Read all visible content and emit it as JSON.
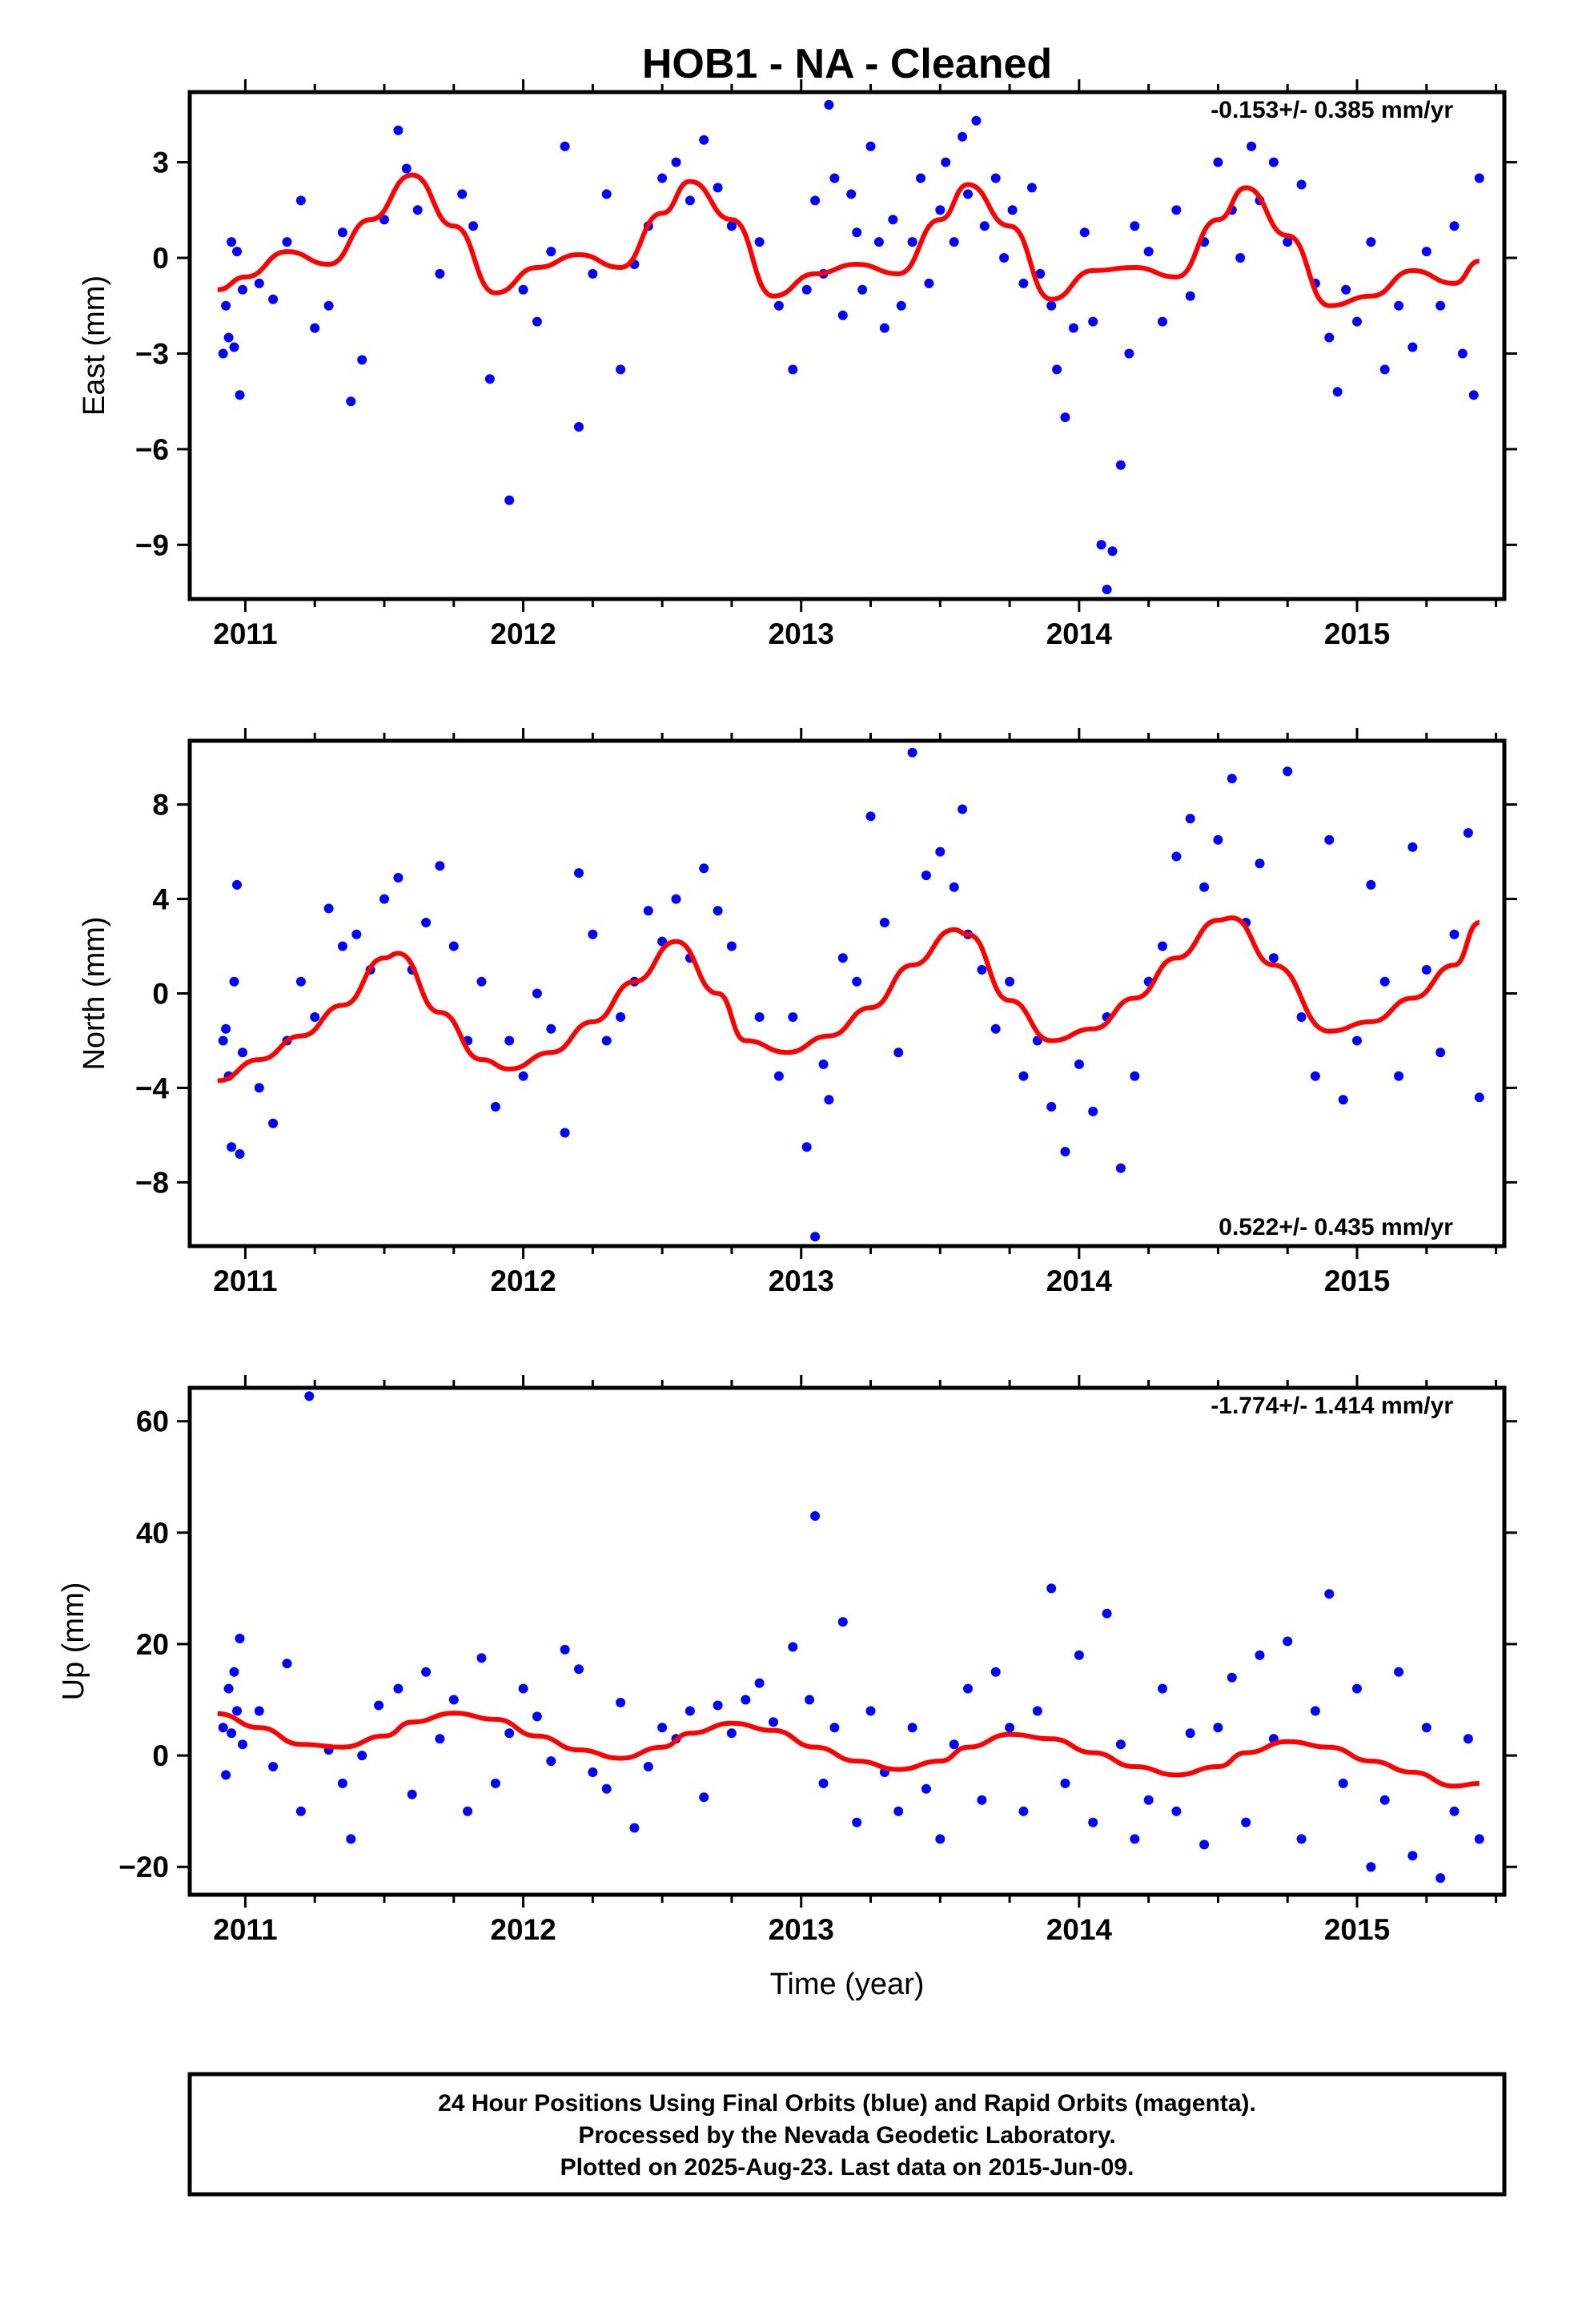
{
  "title": "HOB1  - NA - Cleaned",
  "xlabel": "Time (year)",
  "footer": {
    "line1": "24 Hour Positions Using Final Orbits (blue) and Rapid Orbits (magenta).",
    "line2": "Processed by the Nevada Geodetic Laboratory.",
    "line3": "Plotted on 2025-Aug-23. Last data on 2015-Jun-09."
  },
  "colors": {
    "points": "#0000ff",
    "fit": "#ff0000",
    "axes": "#000000"
  },
  "chart_data": [
    {
      "type": "scatter",
      "panel": "east",
      "ylabel": "East (mm)",
      "rate": "-0.153+/- 0.385 mm/yr",
      "xlim": [
        2010.8,
        2015.53
      ],
      "ylim": [
        -10.7,
        5.2
      ],
      "xticks": [
        "2011",
        "2012",
        "2013",
        "2014",
        "2015"
      ],
      "yticks": [
        "3",
        "0",
        "−3",
        "−6",
        "−9"
      ],
      "ytick_values": [
        3,
        0,
        -3,
        -6,
        -9
      ],
      "fit_line": {
        "x": [
          2010.9,
          2011.0,
          2011.15,
          2011.3,
          2011.45,
          2011.6,
          2011.75,
          2011.9,
          2012.05,
          2012.2,
          2012.35,
          2012.5,
          2012.6,
          2012.75,
          2012.9,
          2013.05,
          2013.2,
          2013.35,
          2013.5,
          2013.6,
          2013.75,
          2013.9,
          2014.05,
          2014.2,
          2014.35,
          2014.5,
          2014.6,
          2014.75,
          2014.9,
          2015.05,
          2015.2,
          2015.35,
          2015.44
        ],
        "y": [
          -1.0,
          -0.6,
          0.2,
          -0.2,
          1.2,
          2.6,
          1.0,
          -1.1,
          -0.3,
          0.1,
          -0.3,
          1.4,
          2.4,
          1.2,
          -1.2,
          -0.5,
          -0.2,
          -0.5,
          1.2,
          2.3,
          1.0,
          -1.3,
          -0.4,
          -0.3,
          -0.6,
          1.2,
          2.2,
          0.7,
          -1.5,
          -1.2,
          -0.4,
          -0.8,
          -0.1
        ]
      },
      "points": {
        "x": [
          2010.92,
          2010.93,
          2010.94,
          2010.95,
          2010.96,
          2010.97,
          2010.98,
          2010.99,
          2011.05,
          2011.1,
          2011.15,
          2011.2,
          2011.25,
          2011.3,
          2011.35,
          2011.38,
          2011.42,
          2011.5,
          2011.55,
          2011.58,
          2011.62,
          2011.7,
          2011.78,
          2011.82,
          2011.88,
          2011.95,
          2012.0,
          2012.05,
          2012.1,
          2012.15,
          2012.2,
          2012.25,
          2012.3,
          2012.35,
          2012.4,
          2012.45,
          2012.5,
          2012.55,
          2012.6,
          2012.65,
          2012.7,
          2012.75,
          2012.85,
          2012.92,
          2012.97,
          2013.02,
          2013.05,
          2013.08,
          2013.1,
          2013.12,
          2013.15,
          2013.18,
          2013.2,
          2013.22,
          2013.25,
          2013.28,
          2013.3,
          2013.33,
          2013.36,
          2013.4,
          2013.43,
          2013.46,
          2013.5,
          2013.52,
          2013.55,
          2013.58,
          2013.6,
          2013.63,
          2013.66,
          2013.7,
          2013.73,
          2013.76,
          2013.8,
          2013.83,
          2013.86,
          2013.9,
          2013.92,
          2013.95,
          2013.98,
          2014.02,
          2014.05,
          2014.08,
          2014.1,
          2014.12,
          2014.15,
          2014.18,
          2014.2,
          2014.25,
          2014.3,
          2014.35,
          2014.4,
          2014.45,
          2014.5,
          2014.55,
          2014.58,
          2014.62,
          2014.65,
          2014.7,
          2014.75,
          2014.8,
          2014.85,
          2014.9,
          2014.93,
          2014.96,
          2015.0,
          2015.05,
          2015.1,
          2015.15,
          2015.2,
          2015.25,
          2015.3,
          2015.35,
          2015.38,
          2015.42,
          2015.44
        ],
        "y": [
          -3.0,
          -1.5,
          -2.5,
          0.5,
          -2.8,
          0.2,
          -4.3,
          -1.0,
          -0.8,
          -1.3,
          0.5,
          1.8,
          -2.2,
          -1.5,
          0.8,
          -4.5,
          -3.2,
          1.2,
          4.0,
          2.8,
          1.5,
          -0.5,
          2.0,
          1.0,
          -3.8,
          -7.6,
          -1.0,
          -2.0,
          0.2,
          3.5,
          -5.3,
          -0.5,
          2.0,
          -3.5,
          -0.2,
          1.0,
          2.5,
          3.0,
          1.8,
          3.7,
          2.2,
          1.0,
          0.5,
          -1.5,
          -3.5,
          -1.0,
          1.8,
          -0.5,
          4.8,
          2.5,
          -1.8,
          2.0,
          0.8,
          -1.0,
          3.5,
          0.5,
          -2.2,
          1.2,
          -1.5,
          0.5,
          2.5,
          -0.8,
          1.5,
          3.0,
          0.5,
          3.8,
          2.0,
          4.3,
          1.0,
          2.5,
          0.0,
          1.5,
          -0.8,
          2.2,
          -0.5,
          -1.5,
          -3.5,
          -5.0,
          -2.2,
          0.8,
          -2.0,
          -9.0,
          -10.4,
          -9.2,
          -6.5,
          -3.0,
          1.0,
          0.2,
          -2.0,
          1.5,
          -1.2,
          0.5,
          3.0,
          1.5,
          0.0,
          3.5,
          1.8,
          3.0,
          0.5,
          2.3,
          -0.8,
          -2.5,
          -4.2,
          -1.0,
          -2.0,
          0.5,
          -3.5,
          -1.5,
          -2.8,
          0.2,
          -1.5,
          1.0,
          -3.0,
          -4.3,
          2.5
        ]
      }
    },
    {
      "type": "scatter",
      "panel": "north",
      "ylabel": "North (mm)",
      "rate": "0.522+/- 0.435 mm/yr",
      "xlim": [
        2010.8,
        2015.53
      ],
      "ylim": [
        -10.7,
        10.7
      ],
      "xticks": [
        "2011",
        "2012",
        "2013",
        "2014",
        "2015"
      ],
      "yticks": [
        "8",
        "4",
        "0",
        "−4",
        "−8"
      ],
      "ytick_values": [
        8,
        4,
        0,
        -4,
        -8
      ],
      "fit_line": {
        "x": [
          2010.9,
          2011.05,
          2011.2,
          2011.35,
          2011.5,
          2011.55,
          2011.7,
          2011.85,
          2011.95,
          2012.1,
          2012.25,
          2012.4,
          2012.55,
          2012.7,
          2012.8,
          2012.95,
          2013.1,
          2013.25,
          2013.4,
          2013.55,
          2013.6,
          2013.75,
          2013.9,
          2014.05,
          2014.2,
          2014.35,
          2014.5,
          2014.55,
          2014.7,
          2014.9,
          2015.05,
          2015.2,
          2015.35,
          2015.44
        ],
        "y": [
          -3.7,
          -2.8,
          -1.8,
          -0.5,
          1.5,
          1.7,
          -0.8,
          -2.8,
          -3.2,
          -2.5,
          -1.2,
          0.5,
          2.2,
          0.0,
          -2.0,
          -2.5,
          -1.8,
          -0.6,
          1.2,
          2.7,
          2.5,
          -0.3,
          -2.0,
          -1.5,
          -0.2,
          1.5,
          3.1,
          3.2,
          1.2,
          -1.6,
          -1.2,
          -0.2,
          1.2,
          3.0
        ]
      },
      "points": {
        "x": [
          2010.92,
          2010.93,
          2010.94,
          2010.95,
          2010.96,
          2010.97,
          2010.98,
          2010.99,
          2011.05,
          2011.1,
          2011.15,
          2011.2,
          2011.25,
          2011.3,
          2011.35,
          2011.4,
          2011.45,
          2011.5,
          2011.55,
          2011.6,
          2011.65,
          2011.7,
          2011.75,
          2011.8,
          2011.85,
          2011.9,
          2011.95,
          2012.0,
          2012.05,
          2012.1,
          2012.15,
          2012.2,
          2012.25,
          2012.3,
          2012.35,
          2012.4,
          2012.45,
          2012.5,
          2012.55,
          2012.6,
          2012.65,
          2012.7,
          2012.75,
          2012.85,
          2012.92,
          2012.97,
          2013.02,
          2013.05,
          2013.08,
          2013.1,
          2013.15,
          2013.2,
          2013.25,
          2013.3,
          2013.35,
          2013.4,
          2013.45,
          2013.5,
          2013.55,
          2013.58,
          2013.6,
          2013.65,
          2013.7,
          2013.75,
          2013.8,
          2013.85,
          2013.9,
          2013.95,
          2014.0,
          2014.05,
          2014.1,
          2014.15,
          2014.2,
          2014.25,
          2014.3,
          2014.35,
          2014.4,
          2014.45,
          2014.5,
          2014.55,
          2014.6,
          2014.65,
          2014.7,
          2014.75,
          2014.8,
          2014.85,
          2014.9,
          2014.95,
          2015.0,
          2015.05,
          2015.1,
          2015.15,
          2015.2,
          2015.25,
          2015.3,
          2015.35,
          2015.4,
          2015.44
        ],
        "y": [
          -2.0,
          -1.5,
          -3.5,
          -6.5,
          0.5,
          4.6,
          -6.8,
          -2.5,
          -4.0,
          -5.5,
          -2.0,
          0.5,
          -1.0,
          3.6,
          2.0,
          2.5,
          1.0,
          4.0,
          4.9,
          1.0,
          3.0,
          5.4,
          2.0,
          -2.0,
          0.5,
          -4.8,
          -2.0,
          -3.5,
          0.0,
          -1.5,
          -5.9,
          5.1,
          2.5,
          -2.0,
          -1.0,
          0.5,
          3.5,
          2.2,
          4.0,
          1.5,
          5.3,
          3.5,
          2.0,
          -1.0,
          -3.5,
          -1.0,
          -6.5,
          -10.3,
          -3.0,
          -4.5,
          1.5,
          0.5,
          7.5,
          3.0,
          -2.5,
          10.2,
          5.0,
          6.0,
          4.5,
          7.8,
          2.5,
          1.0,
          -1.5,
          0.5,
          -3.5,
          -2.0,
          -4.8,
          -6.7,
          -3.0,
          -5.0,
          -1.0,
          -7.4,
          -3.5,
          0.5,
          2.0,
          5.8,
          7.4,
          4.5,
          6.5,
          9.1,
          3.0,
          5.5,
          1.5,
          9.4,
          -1.0,
          -3.5,
          6.5,
          -4.5,
          -2.0,
          4.6,
          0.5,
          -3.5,
          6.2,
          1.0,
          -2.5,
          2.5,
          6.8,
          -4.4
        ]
      }
    },
    {
      "type": "scatter",
      "panel": "up",
      "ylabel": "Up (mm)",
      "rate": "-1.774+/- 1.414 mm/yr",
      "xlim": [
        2010.8,
        2015.53
      ],
      "ylim": [
        -25,
        66
      ],
      "xticks": [
        "2011",
        "2012",
        "2013",
        "2014",
        "2015"
      ],
      "yticks": [
        "60",
        "40",
        "20",
        "0",
        "−20"
      ],
      "ytick_values": [
        60,
        40,
        20,
        0,
        -20
      ],
      "fit_line": {
        "x": [
          2010.9,
          2011.05,
          2011.2,
          2011.35,
          2011.5,
          2011.6,
          2011.75,
          2011.9,
          2012.05,
          2012.2,
          2012.35,
          2012.5,
          2012.6,
          2012.75,
          2012.9,
          2013.05,
          2013.2,
          2013.35,
          2013.5,
          2013.6,
          2013.75,
          2013.9,
          2014.05,
          2014.2,
          2014.35,
          2014.5,
          2014.6,
          2014.75,
          2014.9,
          2015.05,
          2015.2,
          2015.35,
          2015.44
        ],
        "y": [
          7.5,
          5.0,
          2.0,
          1.5,
          3.5,
          6.0,
          7.6,
          6.5,
          3.5,
          1.0,
          -0.5,
          1.5,
          4.0,
          5.8,
          4.5,
          1.5,
          -1.0,
          -2.5,
          -1.0,
          1.5,
          3.8,
          3.0,
          0.5,
          -2.0,
          -3.5,
          -2.0,
          0.5,
          2.5,
          1.5,
          -1.0,
          -3.0,
          -5.5,
          -5.0
        ]
      },
      "points": {
        "x": [
          2010.92,
          2010.93,
          2010.94,
          2010.95,
          2010.96,
          2010.97,
          2010.98,
          2010.99,
          2011.05,
          2011.1,
          2011.15,
          2011.2,
          2011.23,
          2011.3,
          2011.35,
          2011.38,
          2011.42,
          2011.48,
          2011.55,
          2011.6,
          2011.65,
          2011.7,
          2011.75,
          2011.8,
          2011.85,
          2011.9,
          2011.95,
          2012.0,
          2012.05,
          2012.1,
          2012.15,
          2012.2,
          2012.25,
          2012.3,
          2012.35,
          2012.4,
          2012.45,
          2012.5,
          2012.55,
          2012.6,
          2012.65,
          2012.7,
          2012.75,
          2012.8,
          2012.85,
          2012.9,
          2012.97,
          2013.03,
          2013.05,
          2013.08,
          2013.12,
          2013.15,
          2013.2,
          2013.25,
          2013.3,
          2013.35,
          2013.4,
          2013.45,
          2013.5,
          2013.55,
          2013.6,
          2013.65,
          2013.7,
          2013.75,
          2013.8,
          2013.85,
          2013.9,
          2013.95,
          2014.0,
          2014.05,
          2014.1,
          2014.15,
          2014.2,
          2014.25,
          2014.3,
          2014.35,
          2014.4,
          2014.45,
          2014.5,
          2014.55,
          2014.6,
          2014.65,
          2014.7,
          2014.75,
          2014.8,
          2014.85,
          2014.9,
          2014.95,
          2015.0,
          2015.05,
          2015.1,
          2015.15,
          2015.2,
          2015.25,
          2015.3,
          2015.35,
          2015.4,
          2015.44
        ],
        "y": [
          5.0,
          -3.5,
          12.0,
          4.0,
          15.0,
          8.0,
          21.0,
          2.0,
          8.0,
          -2.0,
          16.5,
          -10.0,
          64.5,
          1.0,
          -5.0,
          -15.0,
          0.0,
          9.0,
          12.0,
          -7.0,
          15.0,
          3.0,
          10.0,
          -10.0,
          17.5,
          -5.0,
          4.0,
          12.0,
          7.0,
          -1.0,
          19.0,
          15.5,
          -3.0,
          -6.0,
          9.5,
          -13.0,
          -2.0,
          5.0,
          3.0,
          8.0,
          -7.5,
          9.0,
          4.0,
          10.0,
          13.0,
          6.0,
          19.5,
          10.0,
          43.0,
          -5.0,
          5.0,
          24.0,
          -12.0,
          8.0,
          -3.0,
          -10.0,
          5.0,
          -6.0,
          -15.0,
          2.0,
          12.0,
          -8.0,
          15.0,
          5.0,
          -10.0,
          8.0,
          30.0,
          -5.0,
          18.0,
          -12.0,
          25.5,
          2.0,
          -15.0,
          -8.0,
          12.0,
          -10.0,
          4.0,
          -16.0,
          5.0,
          14.0,
          -12.0,
          18.0,
          3.0,
          20.5,
          -15.0,
          8.0,
          29.0,
          -5.0,
          12.0,
          -20.0,
          -8.0,
          15.0,
          -18.0,
          5.0,
          -22.0,
          -10.0,
          3.0,
          -15.0
        ]
      }
    }
  ]
}
